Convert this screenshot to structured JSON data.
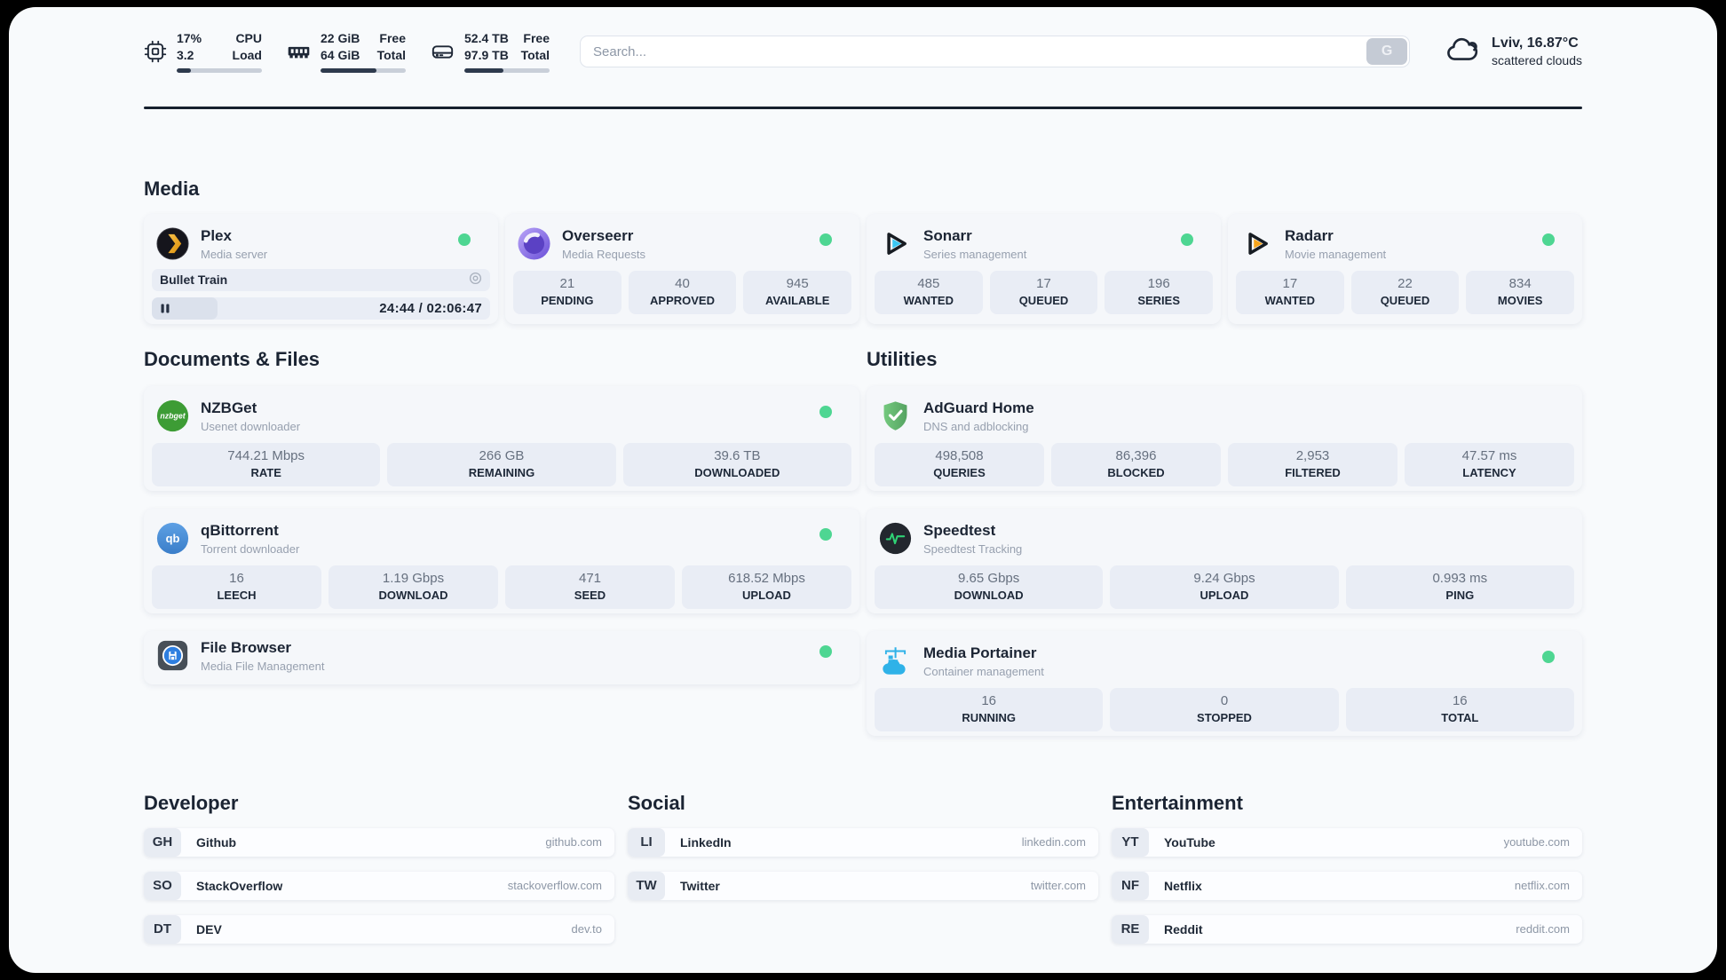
{
  "colors": {
    "status_online": "#4ed692",
    "progress_fill": "#2e3a4d",
    "divider": "#16202e",
    "plex_accent": "#f2a50f",
    "overseerr_accent": "#6a4fd8",
    "sonarr_accent": "#39c7f3",
    "radarr_accent": "#f7a51b",
    "nzbget_accent": "#3d9c35",
    "qbittorrent_accent": "#468fd6",
    "adguard_accent": "#67b279",
    "speedtest_accent": "#2fd275",
    "portainer_accent": "#2fb2e8"
  },
  "topbar": {
    "cpu": {
      "values": [
        "17%",
        "3.2"
      ],
      "labels": [
        "CPU",
        "Load"
      ],
      "progress_pct": 17
    },
    "memory": {
      "values": [
        "22 GiB",
        "64 GiB"
      ],
      "labels": [
        "Free",
        "Total"
      ],
      "progress_pct": 66
    },
    "storage": {
      "values": [
        "52.4 TB",
        "97.9 TB"
      ],
      "labels": [
        "Free",
        "Total"
      ],
      "progress_pct": 46
    },
    "search": {
      "placeholder": "Search...",
      "button_label": "G"
    },
    "weather": {
      "line1": "Lviv, 16.87°C",
      "line2": "scattered clouds"
    }
  },
  "sections": {
    "media": {
      "title": "Media",
      "apps": [
        {
          "name": "Plex",
          "subtitle": "Media server",
          "status_dot": true,
          "now_playing": {
            "title": "Bullet Train",
            "time_display": "24:44 / 02:06:47",
            "progress_pct": 19.5
          }
        },
        {
          "name": "Overseerr",
          "subtitle": "Media Requests",
          "status_dot": true,
          "stats": [
            {
              "value": "21",
              "label": "PENDING"
            },
            {
              "value": "40",
              "label": "APPROVED"
            },
            {
              "value": "945",
              "label": "AVAILABLE"
            }
          ]
        },
        {
          "name": "Sonarr",
          "subtitle": "Series management",
          "status_dot": true,
          "stats": [
            {
              "value": "485",
              "label": "WANTED"
            },
            {
              "value": "17",
              "label": "QUEUED"
            },
            {
              "value": "196",
              "label": "SERIES"
            }
          ]
        },
        {
          "name": "Radarr",
          "subtitle": "Movie management",
          "status_dot": true,
          "stats": [
            {
              "value": "17",
              "label": "WANTED"
            },
            {
              "value": "22",
              "label": "QUEUED"
            },
            {
              "value": "834",
              "label": "MOVIES"
            }
          ]
        }
      ]
    },
    "documents": {
      "title": "Documents & Files",
      "apps": [
        {
          "name": "NZBGet",
          "subtitle": "Usenet downloader",
          "status_dot": true,
          "stats": [
            {
              "value": "744.21 Mbps",
              "label": "RATE"
            },
            {
              "value": "266 GB",
              "label": "REMAINING"
            },
            {
              "value": "39.6 TB",
              "label": "DOWNLOADED"
            }
          ]
        },
        {
          "name": "qBittorrent",
          "subtitle": "Torrent downloader",
          "status_dot": true,
          "stats": [
            {
              "value": "16",
              "label": "LEECH"
            },
            {
              "value": "1.19 Gbps",
              "label": "DOWNLOAD"
            },
            {
              "value": "471",
              "label": "SEED"
            },
            {
              "value": "618.52 Mbps",
              "label": "UPLOAD"
            }
          ]
        },
        {
          "name": "File Browser",
          "subtitle": "Media File Management",
          "status_dot": true,
          "stats": []
        }
      ]
    },
    "utilities": {
      "title": "Utilities",
      "apps": [
        {
          "name": "AdGuard Home",
          "subtitle": "DNS and adblocking",
          "status_dot": false,
          "stats": [
            {
              "value": "498,508",
              "label": "QUERIES"
            },
            {
              "value": "86,396",
              "label": "BLOCKED"
            },
            {
              "value": "2,953",
              "label": "FILTERED"
            },
            {
              "value": "47.57 ms",
              "label": "LATENCY"
            }
          ]
        },
        {
          "name": "Speedtest",
          "subtitle": "Speedtest Tracking",
          "status_dot": false,
          "stats": [
            {
              "value": "9.65 Gbps",
              "label": "DOWNLOAD"
            },
            {
              "value": "9.24 Gbps",
              "label": "UPLOAD"
            },
            {
              "value": "0.993 ms",
              "label": "PING"
            }
          ]
        },
        {
          "name": "Media Portainer",
          "subtitle": "Container management",
          "status_dot": true,
          "stats": [
            {
              "value": "16",
              "label": "RUNNING"
            },
            {
              "value": "0",
              "label": "STOPPED"
            },
            {
              "value": "16",
              "label": "TOTAL"
            }
          ]
        }
      ]
    },
    "developer": {
      "title": "Developer",
      "links": [
        {
          "initials": "GH",
          "name": "Github",
          "url": "github.com"
        },
        {
          "initials": "SO",
          "name": "StackOverflow",
          "url": "stackoverflow.com"
        },
        {
          "initials": "DT",
          "name": "DEV",
          "url": "dev.to"
        }
      ]
    },
    "social": {
      "title": "Social",
      "links": [
        {
          "initials": "LI",
          "name": "LinkedIn",
          "url": "linkedin.com"
        },
        {
          "initials": "TW",
          "name": "Twitter",
          "url": "twitter.com"
        }
      ]
    },
    "entertainment": {
      "title": "Entertainment",
      "links": [
        {
          "initials": "YT",
          "name": "YouTube",
          "url": "youtube.com"
        },
        {
          "initials": "NF",
          "name": "Netflix",
          "url": "netflix.com"
        },
        {
          "initials": "RE",
          "name": "Reddit",
          "url": "reddit.com"
        }
      ]
    }
  }
}
